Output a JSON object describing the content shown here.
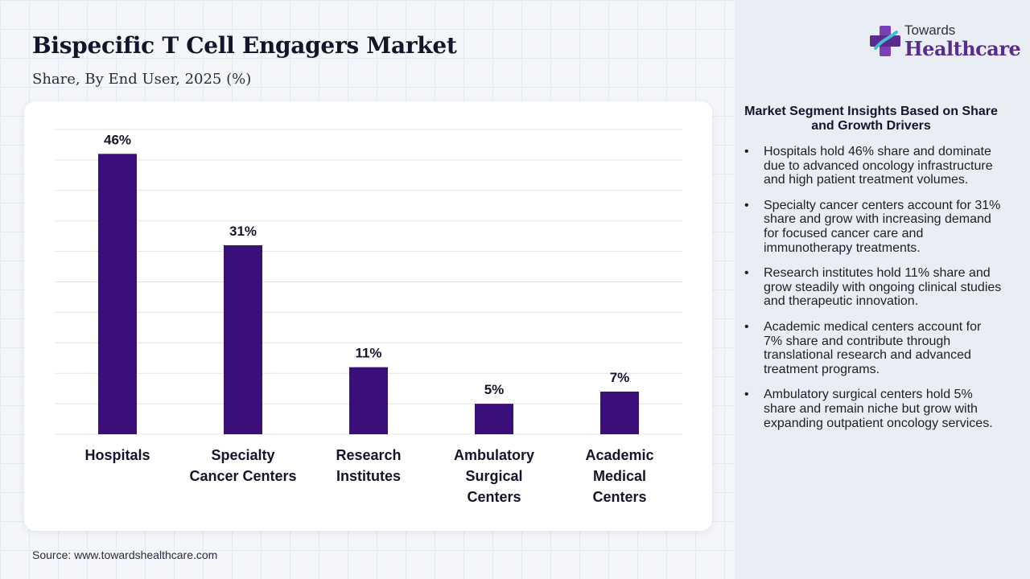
{
  "header": {
    "title": "Bispecific T Cell Engagers Market",
    "subtitle": "Share, By End User, 2025 (%)"
  },
  "logo": {
    "top_text": "Towards",
    "bottom_text": "Healthcare",
    "icon": "plus-cross-logo-icon"
  },
  "source": "Source: www.towardshealthcare.com",
  "insights": {
    "title": "Market Segment Insights Based on Share and Growth Drivers",
    "items": [
      "Hospitals hold 46% share and dominate due to advanced oncology infrastructure and high patient treatment volumes.",
      "Specialty cancer centers account for 31% share and grow with increasing demand for focused cancer care and immunotherapy treatments.",
      "Research institutes hold 11% share and grow steadily with ongoing clinical studies and therapeutic innovation.",
      "Academic medical centers account for 7% share and contribute through translational research and advanced treatment programs.",
      "Ambulatory surgical centers hold 5% share and remain niche but grow with expanding outpatient oncology services."
    ]
  },
  "colors": {
    "bar": "#3a0f7a",
    "brand_purple": "#5b2c8f",
    "grid": "#e3e3e8"
  },
  "chart_data": {
    "type": "bar",
    "categories": [
      [
        "Hospitals"
      ],
      [
        "Specialty",
        "Cancer Centers"
      ],
      [
        "Research",
        "Institutes"
      ],
      [
        "Ambulatory",
        "Surgical",
        "Centers"
      ],
      [
        "Academic",
        "Medical",
        "Centers"
      ]
    ],
    "values": [
      46,
      31,
      11,
      5,
      7
    ],
    "data_labels": [
      "46%",
      "31%",
      "11%",
      "5%",
      "7%"
    ],
    "ylim": [
      0,
      50
    ],
    "grid": true,
    "legend": "none"
  }
}
